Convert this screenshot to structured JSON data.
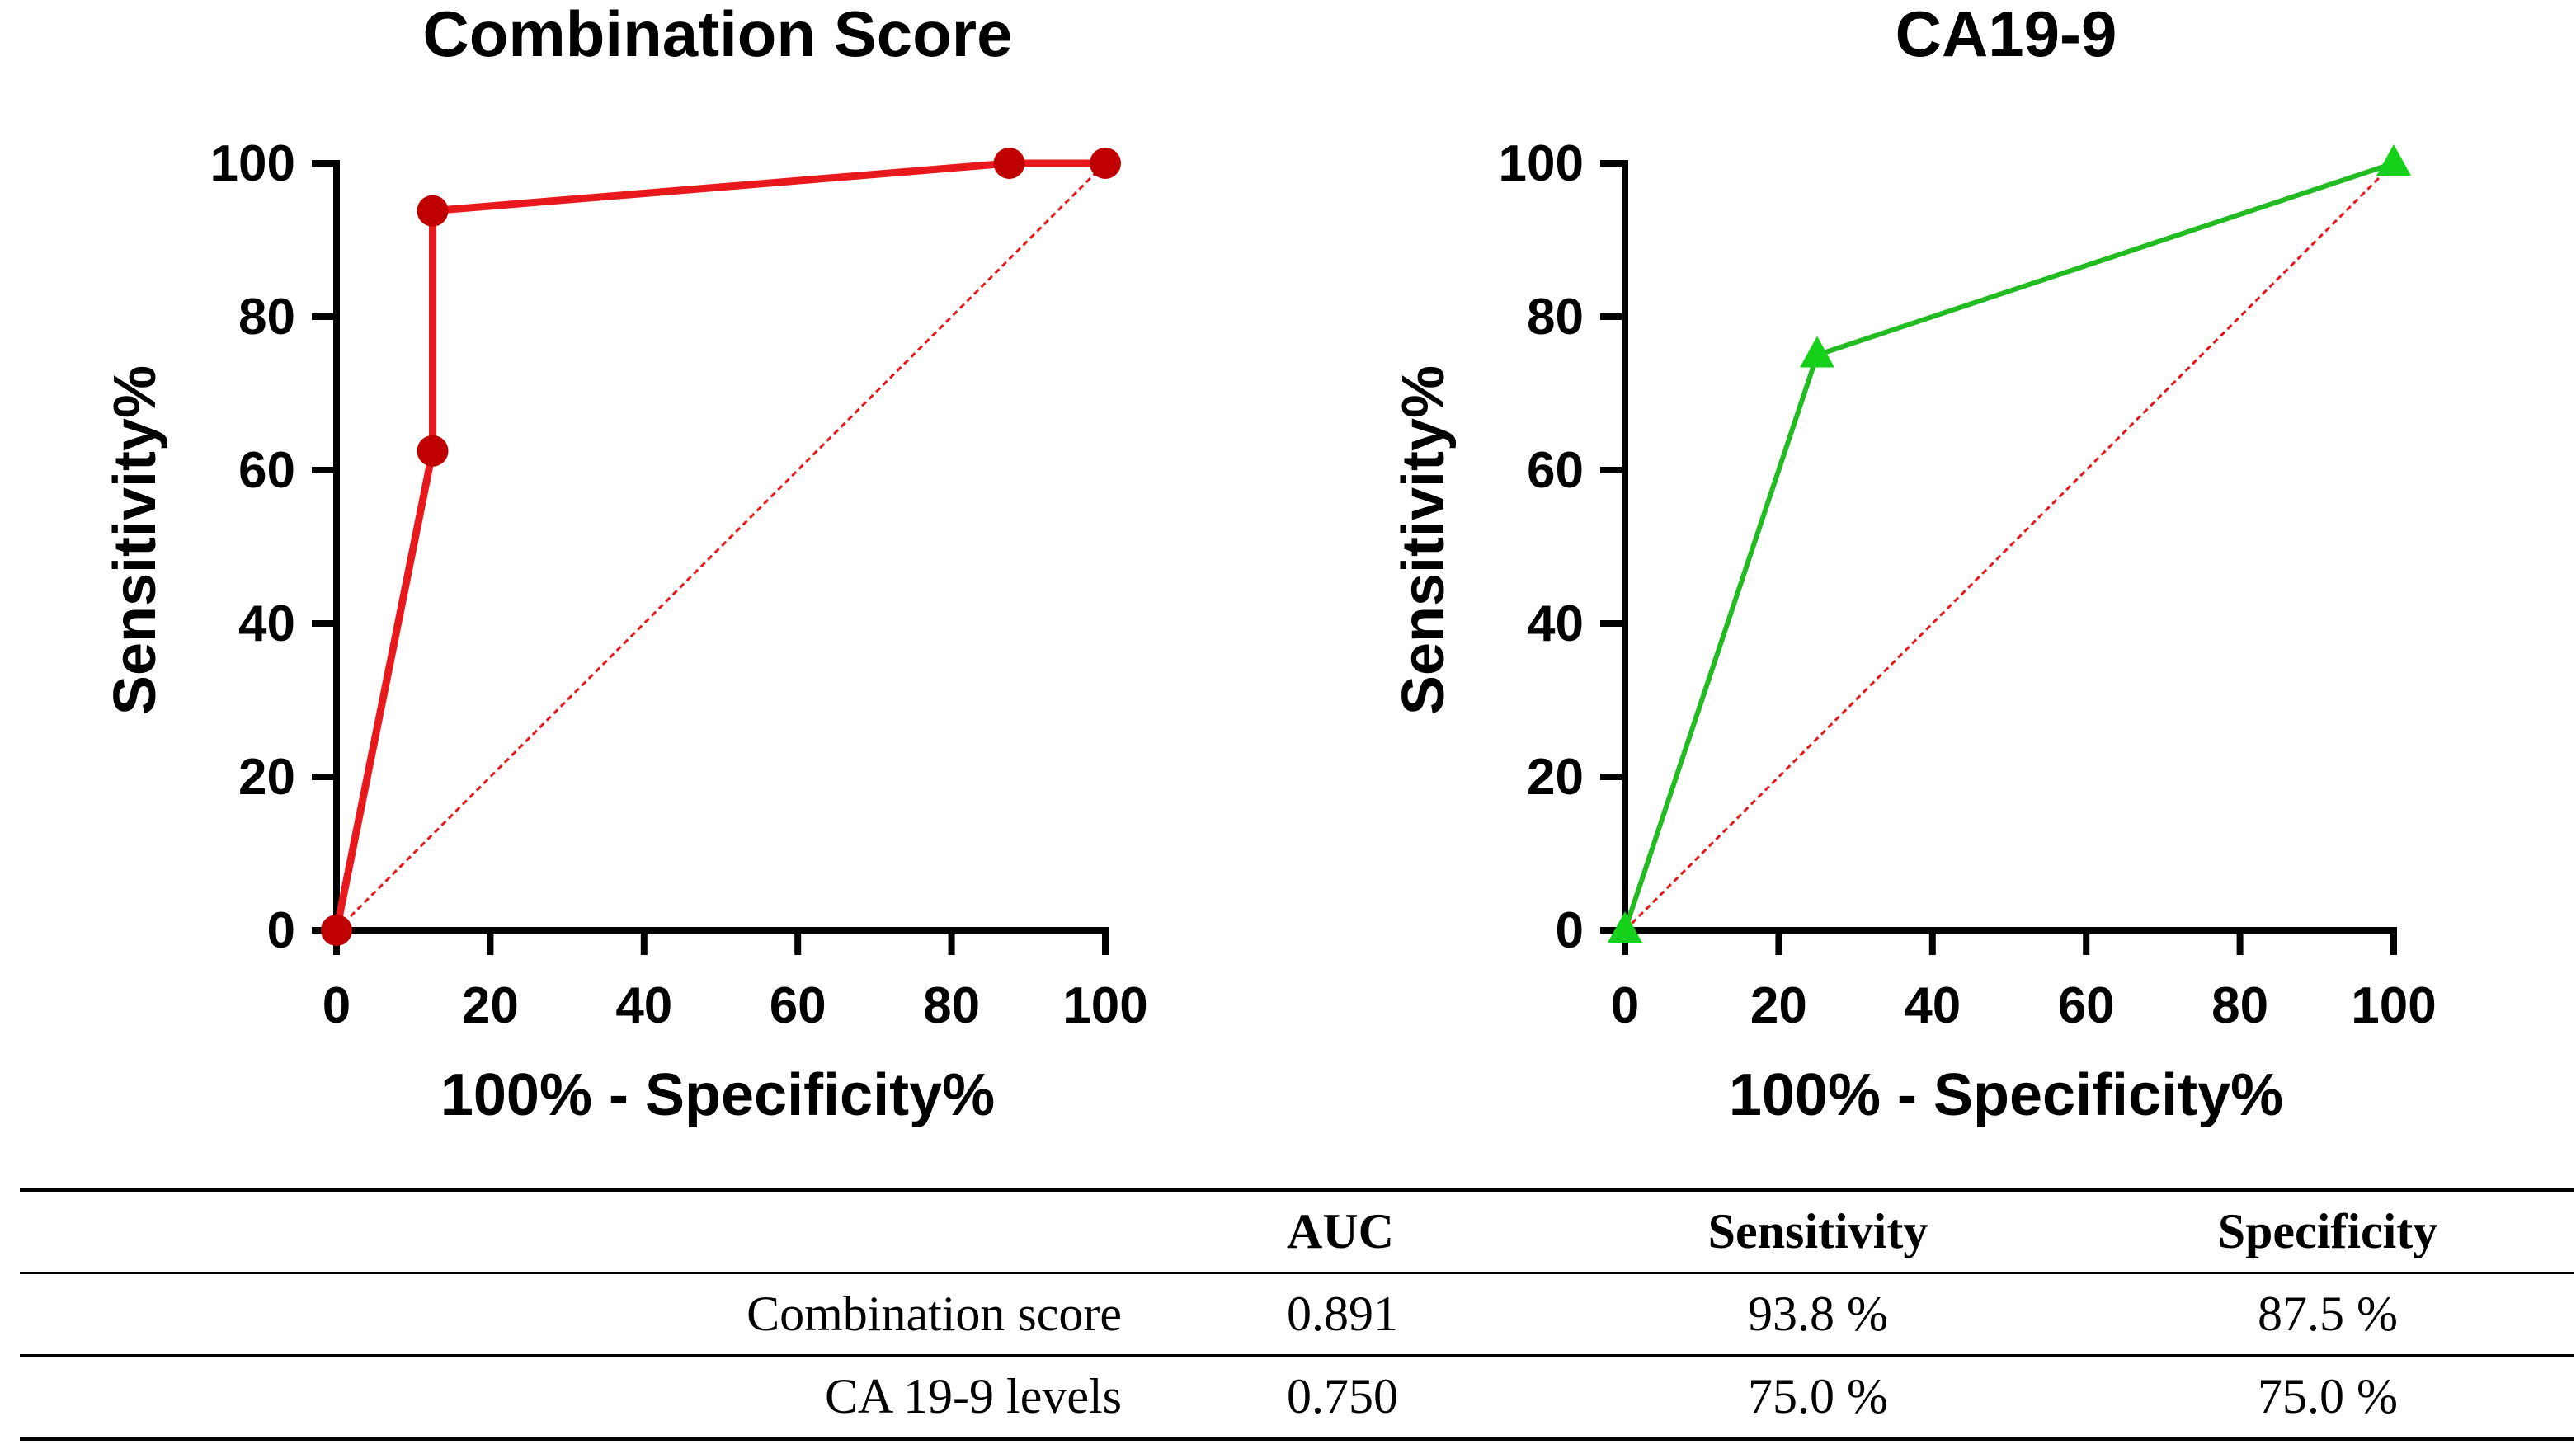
{
  "chart_data": [
    {
      "type": "line",
      "title": "Combination Score",
      "xlabel": "100% - Specificity%",
      "ylabel": "Sensitivity%",
      "xlim": [
        0,
        100
      ],
      "ylim": [
        0,
        100
      ],
      "xticks": [
        0,
        20,
        40,
        60,
        80,
        100
      ],
      "yticks": [
        0,
        20,
        40,
        60,
        80,
        100
      ],
      "x_tick_labels": [
        "0",
        "20",
        "40",
        "60",
        "80",
        "100"
      ],
      "y_tick_labels": [
        "0",
        "20",
        "40",
        "60",
        "80",
        "100"
      ],
      "grid": false,
      "marker": "circle",
      "color": "#e8191c",
      "marker_color": "#c00000",
      "reference_line_color": "#e8191c",
      "series": [
        {
          "name": "Combination Score",
          "x": [
            0,
            12.5,
            12.5,
            87.5,
            100
          ],
          "y": [
            0,
            62.5,
            93.8,
            100,
            100
          ]
        }
      ]
    },
    {
      "type": "line",
      "title": "CA19-9",
      "xlabel": "100% - Specificity%",
      "ylabel": "Sensitivity%",
      "xlim": [
        0,
        100
      ],
      "ylim": [
        0,
        100
      ],
      "xticks": [
        0,
        20,
        40,
        60,
        80,
        100
      ],
      "yticks": [
        0,
        20,
        40,
        60,
        80,
        100
      ],
      "x_tick_labels": [
        "0",
        "20",
        "40",
        "60",
        "80",
        "100"
      ],
      "y_tick_labels": [
        "0",
        "20",
        "40",
        "60",
        "80",
        "100"
      ],
      "grid": false,
      "marker": "triangle",
      "color": "#22bb22",
      "marker_color": "#16d11a",
      "reference_line_color": "#e8191c",
      "series": [
        {
          "name": "CA19-9",
          "x": [
            0,
            25,
            100
          ],
          "y": [
            0,
            75,
            100
          ]
        }
      ]
    }
  ],
  "table": {
    "headers": [
      "",
      "AUC",
      "Sensitivity",
      "Specificity"
    ],
    "rows": [
      [
        "Combination score",
        "0.891",
        "93.8 %",
        "87.5 %"
      ],
      [
        "CA 19-9 levels",
        "0.750",
        "75.0 %",
        "75.0 %"
      ]
    ]
  }
}
